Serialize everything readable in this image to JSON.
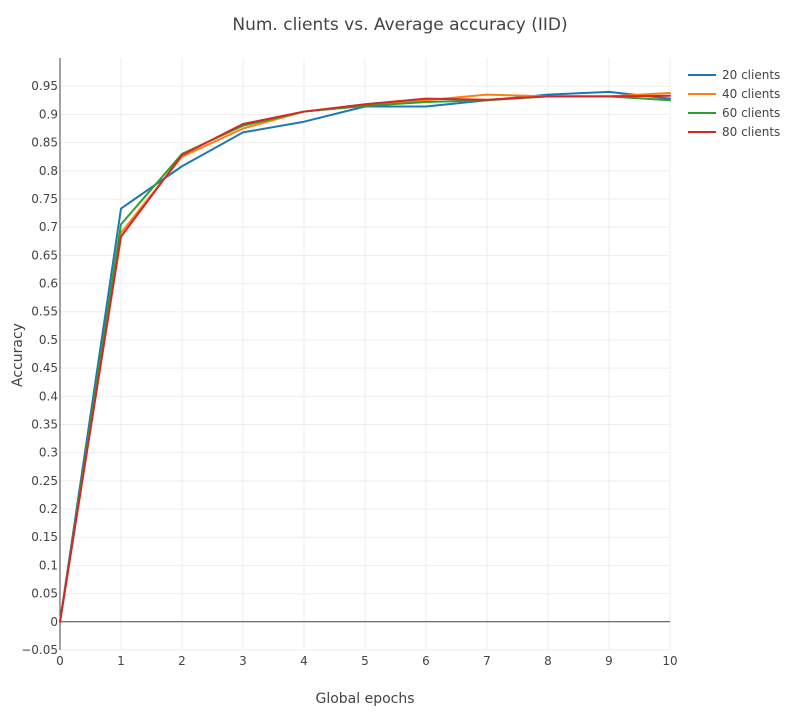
{
  "chart_data": {
    "type": "line",
    "title": "Num. clients vs. Average accuracy (IID)",
    "xlabel": "Global epochs",
    "ylabel": "Accuracy",
    "x": [
      0,
      1,
      2,
      3,
      4,
      5,
      6,
      7,
      8,
      9,
      10
    ],
    "xlim": [
      0,
      10
    ],
    "ylim": [
      -0.05,
      1.0
    ],
    "xticks": [
      "0",
      "1",
      "2",
      "3",
      "4",
      "5",
      "6",
      "7",
      "8",
      "9",
      "10"
    ],
    "yticks": [
      "−0.05",
      "0",
      "0.05",
      "0.1",
      "0.15",
      "0.2",
      "0.25",
      "0.3",
      "0.35",
      "0.4",
      "0.45",
      "0.5",
      "0.55",
      "0.6",
      "0.65",
      "0.7",
      "0.75",
      "0.8",
      "0.85",
      "0.9",
      "0.95"
    ],
    "grid": true,
    "legend_position": "top-right",
    "series": [
      {
        "name": "20 clients",
        "color": "#1f77b4",
        "values": [
          0,
          0.733,
          0.808,
          0.868,
          0.887,
          0.914,
          0.914,
          0.925,
          0.935,
          0.94,
          0.928
        ]
      },
      {
        "name": "40 clients",
        "color": "#ff7f0e",
        "values": [
          0,
          0.69,
          0.825,
          0.875,
          0.905,
          0.915,
          0.925,
          0.935,
          0.932,
          0.932,
          0.938
        ]
      },
      {
        "name": "60 clients",
        "color": "#2ca02c",
        "values": [
          0,
          0.705,
          0.83,
          0.88,
          0.905,
          0.915,
          0.922,
          0.925,
          0.932,
          0.932,
          0.925
        ]
      },
      {
        "name": "80 clients",
        "color": "#d62728",
        "values": [
          0,
          0.683,
          0.828,
          0.883,
          0.905,
          0.918,
          0.928,
          0.926,
          0.932,
          0.932,
          0.933
        ]
      }
    ]
  }
}
